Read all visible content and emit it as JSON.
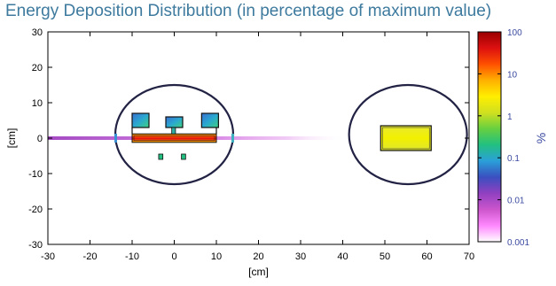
{
  "title": "Energy Deposition Distribution (in percentage of maximum value)",
  "colors": {
    "title": "#3d7a9e",
    "colorbar_text": "#3b4aa0",
    "outline": "#222244"
  },
  "chart_data": {
    "type": "heatmap",
    "xlabel": "[cm]",
    "ylabel": "[cm]",
    "xlim": [
      -30,
      70
    ],
    "ylim": [
      -30,
      30
    ],
    "xticks": [
      -30,
      -20,
      -10,
      0,
      10,
      20,
      30,
      40,
      50,
      60,
      70
    ],
    "yticks": [
      -30,
      -20,
      -10,
      0,
      10,
      20,
      30
    ],
    "colorbar": {
      "label": "%",
      "scale": "log",
      "range": [
        0.001,
        100
      ],
      "tick_labels": [
        "100",
        "10",
        "1",
        "0.1",
        "0.01",
        "0.001"
      ],
      "stops": [
        "#ffffff",
        "#ff88ff",
        "#cc55cc",
        "#9040c0",
        "#3a4fc0",
        "#2aa0d8",
        "#22c080",
        "#66d040",
        "#d0e020",
        "#ffee00",
        "#ffb000",
        "#ff5000",
        "#dd1010",
        "#990000"
      ]
    },
    "structures": {
      "phantom_left": {
        "center": [
          0,
          1
        ],
        "radii": [
          14,
          14
        ]
      },
      "phantom_right": {
        "center": [
          55.5,
          1
        ],
        "radii": [
          14,
          14
        ]
      },
      "beam": {
        "y": 0,
        "x_from": -30,
        "x_to": 41
      },
      "target_bar": {
        "x": [
          -10,
          10
        ],
        "y": [
          -1.2,
          1.2
        ],
        "value_pct": 50
      },
      "upper_blocks": [
        {
          "x": [
            -10,
            -6
          ],
          "y": [
            3,
            7
          ],
          "value_pct": 0.5
        },
        {
          "x": [
            -2,
            2
          ],
          "y": [
            3,
            6
          ],
          "value_pct": 0.5
        },
        {
          "x": [
            6.5,
            10.5
          ],
          "y": [
            3,
            7
          ],
          "value_pct": 0.5
        }
      ],
      "lower_blocks": [
        {
          "x": [
            -3.7,
            -2.7
          ],
          "y": [
            -6,
            -4.5
          ],
          "value_pct": 0.2
        },
        {
          "x": [
            1.7,
            2.7
          ],
          "y": [
            -6,
            -4.5
          ],
          "value_pct": 0.2
        }
      ],
      "right_rect": {
        "x": [
          49,
          61
        ],
        "y": [
          -3.5,
          3.5
        ],
        "value_pct": 2
      }
    }
  }
}
